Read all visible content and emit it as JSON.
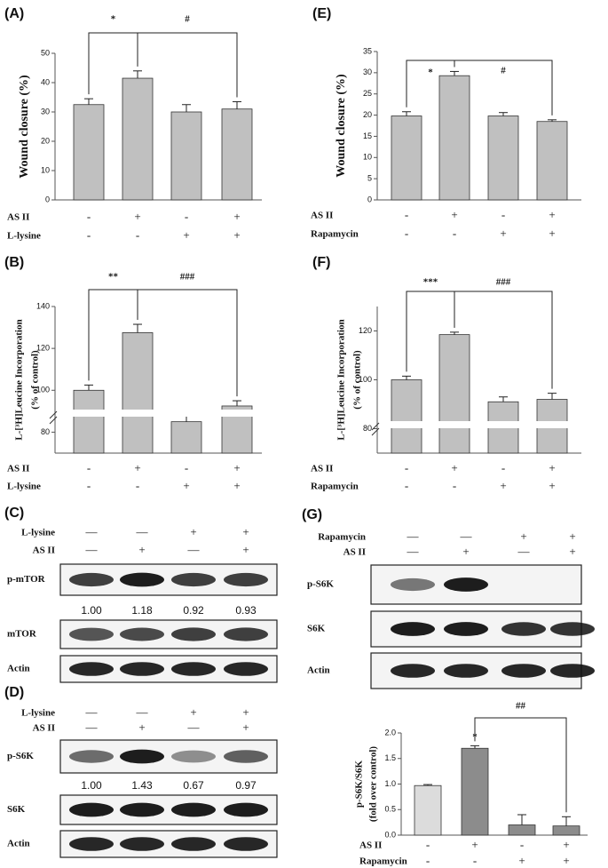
{
  "chart_data": [
    {
      "type": "bar",
      "panel": "(A)",
      "y_label": [
        "Wound closure (%)"
      ],
      "categories": [
        null,
        null,
        null,
        null
      ],
      "values": [
        32.5,
        41.5,
        30,
        31
      ],
      "errors": [
        2,
        2.5,
        2.5,
        2.5
      ],
      "colors": [
        "#c0c0c0",
        "#c0c0c0",
        "#c0c0c0",
        "#c0c0c0"
      ],
      "ylim": [
        0,
        50
      ],
      "yticks": [
        0,
        10,
        20,
        30,
        40,
        50
      ],
      "annotations": [
        "*",
        "#"
      ],
      "conditions": [
        {
          "name": "AS II",
          "signs": [
            "-",
            "+",
            "-",
            "+"
          ]
        },
        {
          "name": "L-lysine",
          "signs": [
            "-",
            "-",
            "+",
            "+"
          ]
        }
      ]
    },
    {
      "type": "bar",
      "panel": "(E)",
      "y_label": [
        "Wound closure (%)"
      ],
      "categories": [
        null,
        null,
        null,
        null
      ],
      "values": [
        19.8,
        29.3,
        19.8,
        18.5
      ],
      "errors": [
        1,
        1,
        0.8,
        0.4
      ],
      "colors": [
        "#c0c0c0",
        "#c0c0c0",
        "#c0c0c0",
        "#c0c0c0"
      ],
      "ylim": [
        0,
        35
      ],
      "yticks": [
        0,
        5,
        10,
        15,
        20,
        25,
        30,
        35
      ],
      "annotations": [
        "*",
        "#"
      ],
      "conditions": [
        {
          "name": "AS II",
          "signs": [
            "-",
            "+",
            "-",
            "+"
          ]
        },
        {
          "name": "Rapamycin",
          "signs": [
            "-",
            "-",
            "+",
            "+"
          ]
        }
      ]
    },
    {
      "type": "bar",
      "panel": "(B)",
      "y_label": [
        "L-[³H]Leucine Incorporation",
        "(% of control)"
      ],
      "categories": [
        null,
        null,
        null,
        null
      ],
      "values": [
        100,
        127.5,
        85,
        92.5
      ],
      "errors": [
        2.5,
        4,
        3,
        2.5
      ],
      "colors": [
        "#c0c0c0",
        "#c0c0c0",
        "#c0c0c0",
        "#c0c0c0"
      ],
      "ylim": [
        70,
        140
      ],
      "yticks": [
        80,
        100,
        120,
        140
      ],
      "axis_break": true,
      "annotations": [
        "**",
        "###"
      ],
      "conditions": [
        {
          "name": "AS II",
          "signs": [
            "-",
            "+",
            "-",
            "+"
          ]
        },
        {
          "name": "L-lysine",
          "signs": [
            "-",
            "-",
            "+",
            "+"
          ]
        }
      ]
    },
    {
      "type": "bar",
      "panel": "(F)",
      "y_label": [
        "L-[³H]Leucine Incorporation",
        "(% of control)"
      ],
      "categories": [
        null,
        null,
        null,
        null
      ],
      "values": [
        100,
        118.5,
        91,
        92
      ],
      "errors": [
        1.5,
        1,
        2,
        2.5
      ],
      "colors": [
        "#c0c0c0",
        "#c0c0c0",
        "#c0c0c0",
        "#c0c0c0"
      ],
      "ylim": [
        70,
        130
      ],
      "yticks": [
        80,
        100,
        120
      ],
      "axis_break": true,
      "annotations": [
        "***",
        "###"
      ],
      "conditions": [
        {
          "name": "AS II",
          "signs": [
            "-",
            "+",
            "-",
            "+"
          ]
        },
        {
          "name": "Rapamycin",
          "signs": [
            "-",
            "-",
            "+",
            "+"
          ]
        }
      ]
    },
    {
      "type": "bar",
      "y_label": [
        "p-S6K/S6K",
        "(fold over control)"
      ],
      "categories": [
        null,
        null,
        null,
        null
      ],
      "values": [
        0.97,
        1.7,
        0.2,
        0.18
      ],
      "errors": [
        0.02,
        0.05,
        0.2,
        0.18
      ],
      "colors": [
        "#dcdcdc",
        "#8c8c8c",
        "#8c8c8c",
        "#8c8c8c"
      ],
      "ylim": [
        0,
        2
      ],
      "yticks": [
        {
          "value": 0,
          "label": "0.0"
        },
        {
          "value": 0.5,
          "label": "0.5"
        },
        {
          "value": 1,
          "label": "1.0"
        },
        {
          "value": 1.5,
          "label": "1.5"
        },
        {
          "value": 2,
          "label": "2.0"
        }
      ],
      "annotations": [
        "*",
        "##"
      ],
      "conditions": [
        {
          "name": "AS II",
          "signs": [
            "-",
            "+",
            "-",
            "+"
          ]
        },
        {
          "name": "Rapamycin",
          "signs": [
            "-",
            "-",
            "+",
            "+"
          ]
        }
      ]
    }
  ],
  "blots": [
    {
      "panel": "(C)",
      "conditions": [
        {
          "name": "L-lysine",
          "signs": [
            "—",
            "—",
            "+",
            "+"
          ]
        },
        {
          "name": "AS II",
          "signs": [
            "—",
            "+",
            "—",
            "+"
          ]
        }
      ],
      "rows": [
        {
          "label": "p-mTOR",
          "ratios": [
            "1.00",
            "1.18",
            "0.92",
            "0.93"
          ]
        },
        {
          "label": "mTOR"
        },
        {
          "label": "Actin"
        }
      ]
    },
    {
      "panel": "(D)",
      "conditions": [
        {
          "name": "L-lysine",
          "signs": [
            "—",
            "—",
            "+",
            "+"
          ]
        },
        {
          "name": "AS II",
          "signs": [
            "—",
            "+",
            "—",
            "+"
          ]
        }
      ],
      "rows": [
        {
          "label": "p-S6K",
          "ratios": [
            "1.00",
            "1.43",
            "0.67",
            "0.97"
          ]
        },
        {
          "label": "S6K"
        },
        {
          "label": "Actin"
        }
      ]
    },
    {
      "panel": "(G)",
      "conditions": [
        {
          "name": "Rapamycin",
          "signs": [
            "—",
            "—",
            "+",
            "+"
          ]
        },
        {
          "name": "AS II",
          "signs": [
            "—",
            "+",
            "—",
            "+"
          ]
        }
      ],
      "rows": [
        {
          "label": "p-S6K"
        },
        {
          "label": "S6K"
        },
        {
          "label": "Actin"
        }
      ]
    }
  ]
}
